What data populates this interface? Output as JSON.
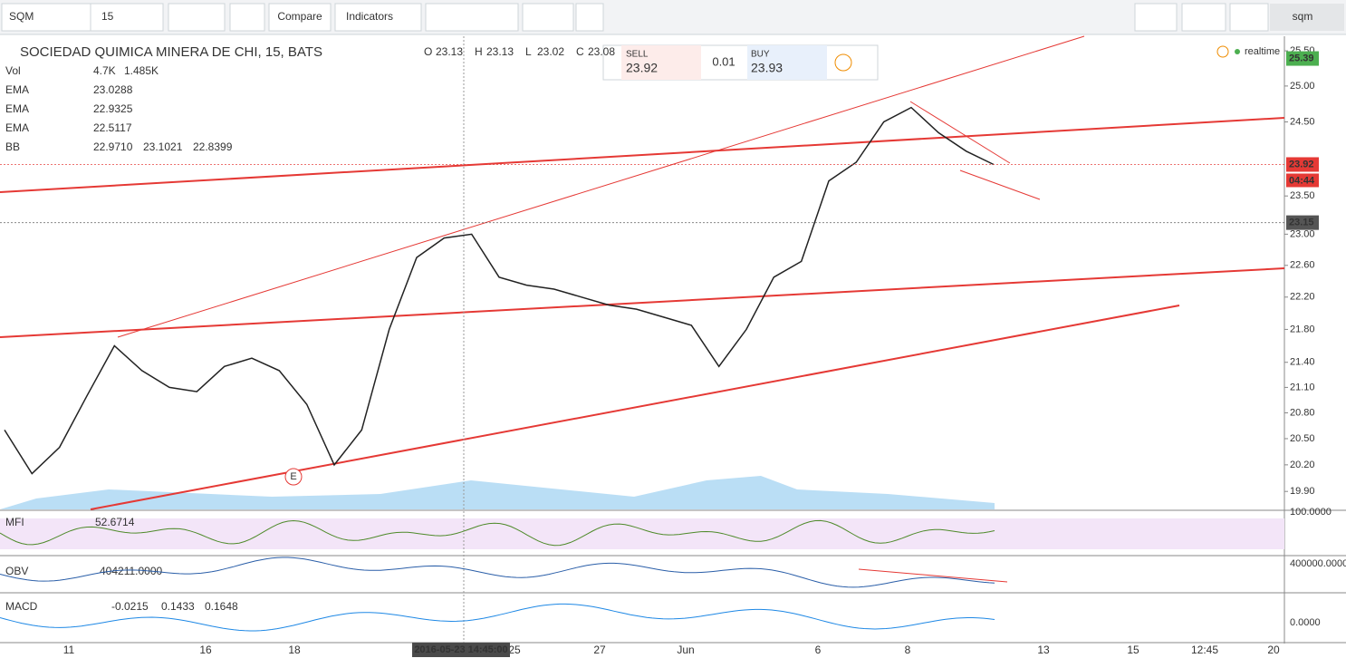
{
  "toolbar": {
    "symbol": "SQM",
    "interval": "15",
    "buttons": [
      "Compare",
      "Indicators"
    ],
    "search": "sqm"
  },
  "legend": {
    "title": "SOCIEDAD QUIMICA MINERA DE CHI, 15, BATS",
    "ohlc": [
      [
        "O",
        "23.13"
      ],
      [
        "H",
        "23.13"
      ],
      [
        "L",
        "23.02"
      ],
      [
        "C",
        "23.08"
      ]
    ],
    "studies": [
      {
        "name": "Vol",
        "values": [
          "4.7K",
          "1.485K"
        ],
        "colors": [
          "#c0392b",
          "#1e88e5"
        ]
      },
      {
        "name": "EMA",
        "values": [
          "23.0288"
        ],
        "colors": [
          "#222222"
        ]
      },
      {
        "name": "EMA",
        "values": [
          "22.9325"
        ],
        "colors": [
          "#ef8c00"
        ]
      },
      {
        "name": "EMA",
        "values": [
          "22.5117"
        ],
        "colors": [
          "#e53935"
        ]
      },
      {
        "name": "BB",
        "values": [
          "22.9710",
          "23.1021",
          "22.8399"
        ],
        "colors": [
          "#8b1a1a",
          "#1b8a8a",
          "#1b8a8a"
        ]
      }
    ]
  },
  "trade": {
    "sell_label": "SELL",
    "sell": "23.92",
    "spread": "0.01",
    "buy_label": "BUY",
    "buy": "23.93"
  },
  "status": "realtime",
  "chart_data": {
    "type": "line",
    "log_scale": true,
    "grid": false,
    "series": [
      {
        "color": "#222222",
        "values": [
          20.6,
          20.1,
          20.4,
          21.0,
          21.6,
          21.3,
          21.1,
          21.05,
          21.35,
          21.45,
          21.3,
          20.9,
          20.2,
          20.6,
          21.8,
          22.7,
          22.95,
          23.0,
          22.45,
          22.35,
          22.3,
          22.2,
          22.1,
          22.05,
          21.95,
          21.85,
          21.35,
          21.8,
          22.45,
          22.65,
          23.7,
          23.95,
          24.5,
          24.7,
          24.35,
          24.1,
          23.92
        ]
      }
    ],
    "ylim": [
      19.7,
      25.71
    ],
    "yticks": [
      {
        "value": 25.5,
        "label": "25.50"
      },
      {
        "value": 25,
        "label": "25.00"
      },
      {
        "value": 24.5,
        "label": "24.50"
      },
      {
        "value": 23.5,
        "label": "23.50"
      },
      {
        "value": 23,
        "label": "23.00"
      },
      {
        "value": 22.6,
        "label": "22.60"
      },
      {
        "value": 22.2,
        "label": "22.20"
      },
      {
        "value": 21.8,
        "label": "21.80"
      },
      {
        "value": 21.4,
        "label": "21.40"
      },
      {
        "value": 21.1,
        "label": "21.10"
      },
      {
        "value": 20.8,
        "label": "20.80"
      },
      {
        "value": 20.5,
        "label": "20.50"
      },
      {
        "value": 20.2,
        "label": "20.20"
      },
      {
        "value": 19.9,
        "label": "19.90"
      }
    ],
    "price_labels": [
      {
        "value": 25.39,
        "color": "#4caf50"
      },
      {
        "value": 23.92,
        "color": "#e53935"
      },
      {
        "value": 23.15,
        "color": "#555555"
      }
    ],
    "countdown": "04:44",
    "x_labels": [
      "11",
      "16",
      "18",
      "25",
      "27",
      "Jun",
      "6",
      "8",
      "13",
      "15",
      "12:45",
      "20"
    ],
    "crosshair_label": "2016-05-23 14:45:00",
    "event": "E"
  },
  "panes": [
    {
      "name": "MFI",
      "values": [
        "52.6714"
      ],
      "colors": [
        "#4e8a2a"
      ],
      "axis": "100.0000"
    },
    {
      "name": "OBV",
      "values": [
        "404211.0000"
      ],
      "colors": [
        "#2a5ea8"
      ],
      "axis": "400000.0000"
    },
    {
      "name": "MACD",
      "values": [
        "-0.0215",
        "0.1433",
        "0.1648"
      ],
      "colors": [
        "#c2185b",
        "#1e88e5",
        "#ef8c00"
      ],
      "axis": "0.0000"
    }
  ]
}
